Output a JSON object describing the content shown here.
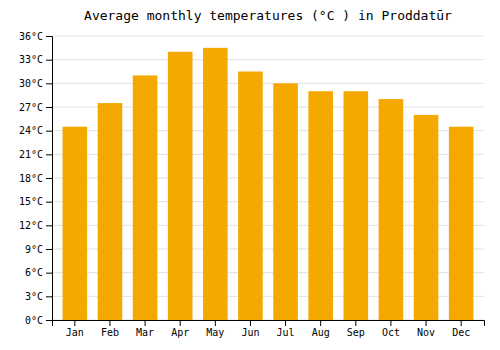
{
  "chart_data": {
    "type": "bar",
    "title": "Average monthly temperatures (°C ) in Proddatūr",
    "categories": [
      "Jan",
      "Feb",
      "Mar",
      "Apr",
      "May",
      "Jun",
      "Jul",
      "Aug",
      "Sep",
      "Oct",
      "Nov",
      "Dec"
    ],
    "values": [
      24.5,
      27.5,
      31.0,
      34.0,
      34.5,
      31.5,
      30.0,
      29.0,
      29.0,
      28.0,
      26.0,
      24.5
    ],
    "color": "#F5A800",
    "ylim": [
      0,
      36
    ],
    "yticks": [
      {
        "value": 0,
        "label": "0°C"
      },
      {
        "value": 3,
        "label": "3°C"
      },
      {
        "value": 6,
        "label": "6°C"
      },
      {
        "value": 9,
        "label": "9°C"
      },
      {
        "value": 12,
        "label": "12°C"
      },
      {
        "value": 15,
        "label": "15°C"
      },
      {
        "value": 18,
        "label": "18°C"
      },
      {
        "value": 21,
        "label": "21°C"
      },
      {
        "value": 24,
        "label": "24°C"
      },
      {
        "value": 27,
        "label": "27°C"
      },
      {
        "value": 30,
        "label": "30°C"
      },
      {
        "value": 33,
        "label": "33°C"
      },
      {
        "value": 36,
        "label": "36°C"
      }
    ],
    "grid": true
  }
}
